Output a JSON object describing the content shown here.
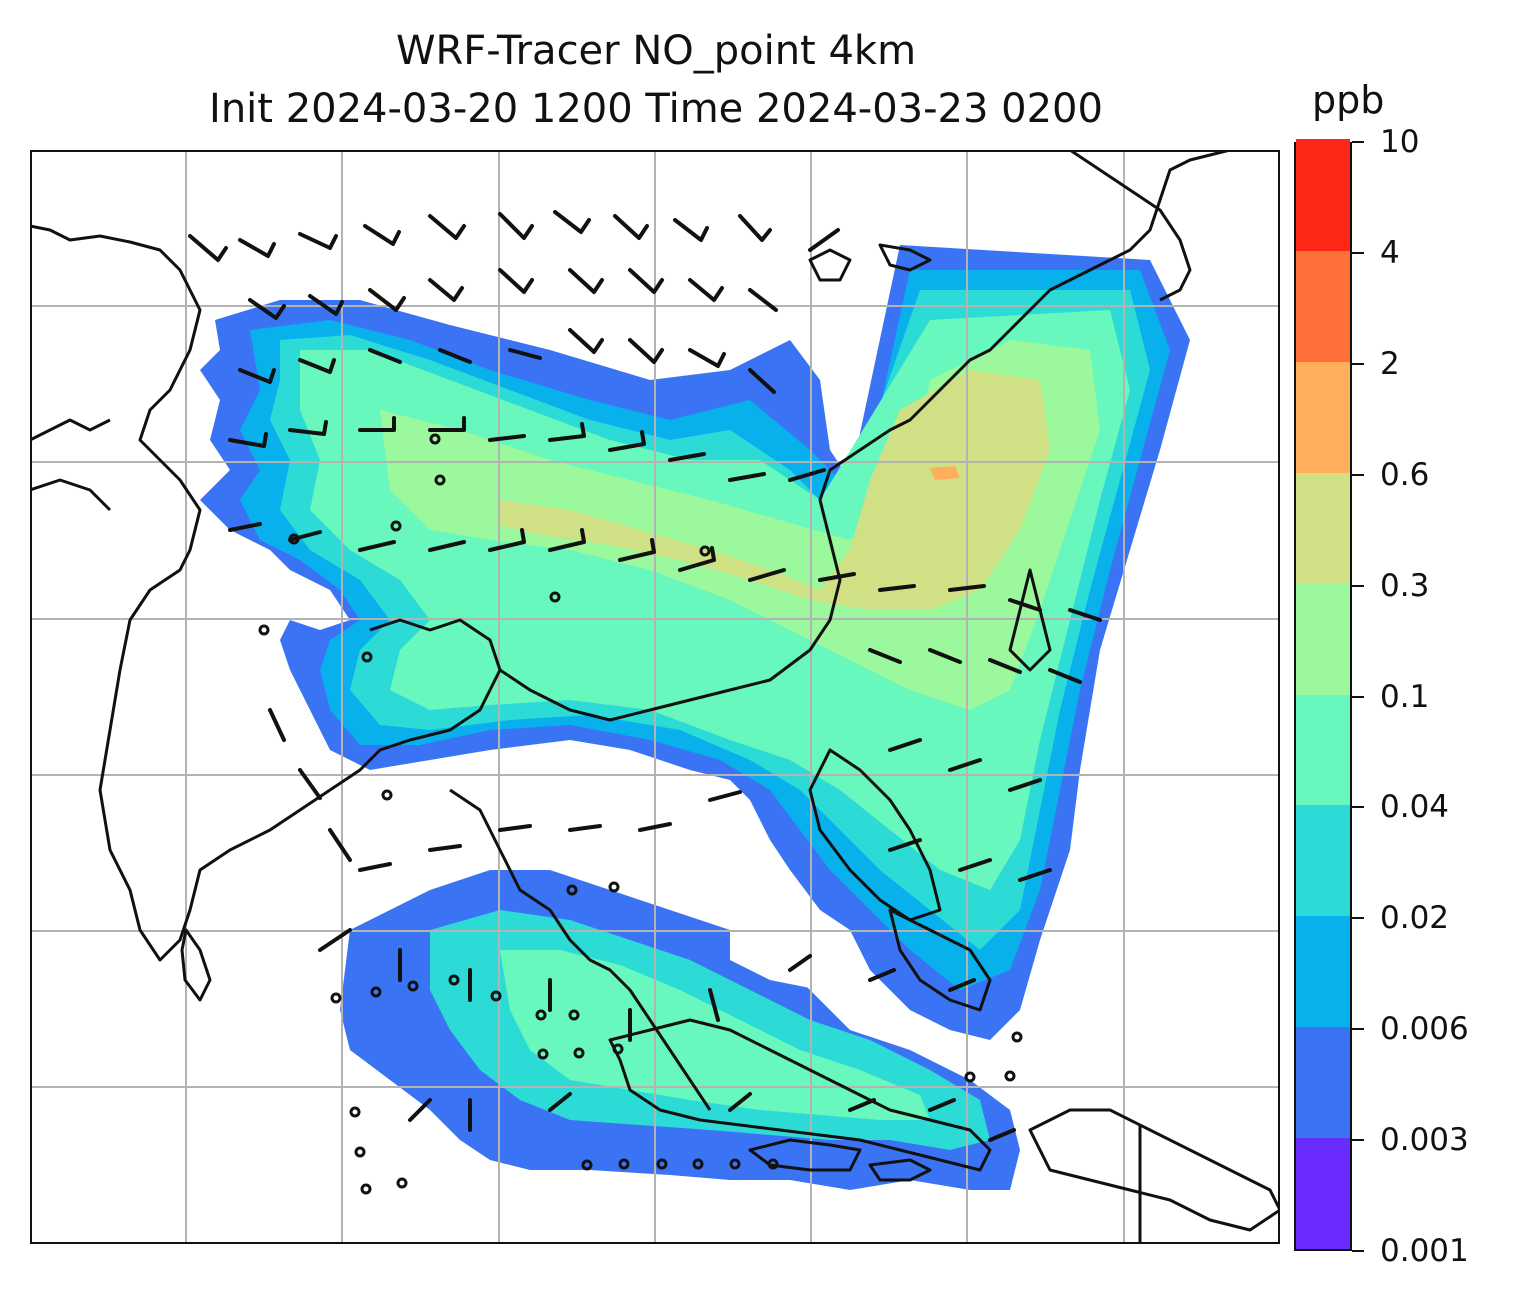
{
  "title": {
    "line1": "WRF-Tracer NO_point 4km",
    "line2": "Init 2024-03-20 1200 Time 2024-03-23 0200"
  },
  "colorbar": {
    "unit": "ppb",
    "levels": [
      "0.001",
      "0.003",
      "0.006",
      "0.02",
      "0.04",
      "0.1",
      "0.3",
      "0.6",
      "2",
      "4",
      "10"
    ],
    "colors": [
      "#6a2bff",
      "#3a74f5",
      "#08b0ec",
      "#2ddbd6",
      "#68f7bd",
      "#9bf89c",
      "#cfe184",
      "#ffae5c",
      "#ff7038",
      "#ff2818"
    ]
  },
  "map": {
    "gridlines": "on",
    "coastline_color": "#111111",
    "gridline_color": "#b3b3b3",
    "wind_barb_color": "#111111"
  }
}
